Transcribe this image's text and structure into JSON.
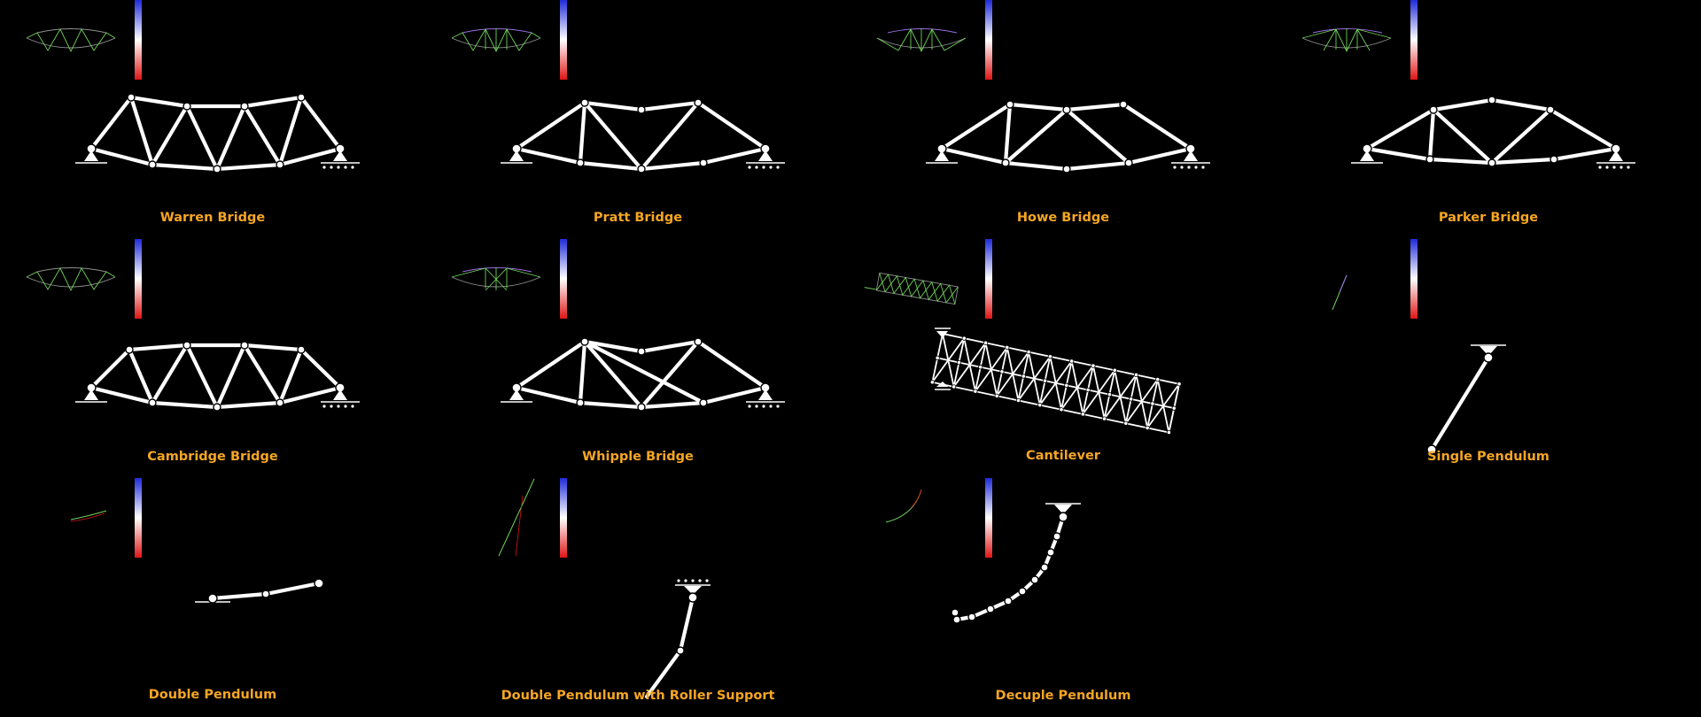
{
  "panels": [
    {
      "title": "Warren Bridge",
      "type": "truss",
      "verticals": false,
      "diagonals": "warren"
    },
    {
      "title": "Pratt Bridge",
      "type": "truss",
      "verticals": true,
      "diagonals": "pratt"
    },
    {
      "title": "Howe Bridge",
      "type": "truss",
      "verticals": true,
      "diagonals": "howe"
    },
    {
      "title": "Parker Bridge",
      "type": "truss",
      "verticals": true,
      "diagonals": "parker"
    },
    {
      "title": "Cambridge Bridge",
      "type": "truss",
      "verticals": false,
      "diagonals": "warren"
    },
    {
      "title": "Whipple Bridge",
      "type": "truss",
      "verticals": true,
      "diagonals": "whipple"
    },
    {
      "title": "Cantilever",
      "type": "cantilever"
    },
    {
      "title": "Single Pendulum",
      "type": "pendulum",
      "links": 1
    },
    {
      "title": "Double Pendulum",
      "type": "pendulum",
      "links": 2
    },
    {
      "title": "Double Pendulum with Roller Support",
      "type": "pendulum",
      "links": 2,
      "roller": true
    },
    {
      "title": "Decuple Pendulum",
      "type": "pendulum",
      "links": 10
    }
  ],
  "colorbar": {
    "top_color": "#1f2bd9",
    "mid_color": "#ffffff",
    "bottom_color": "#e01515"
  },
  "mini_colors": {
    "chord": "#8f8f8f",
    "diag_a": "#6fd15a",
    "diag_b": "#9a6fe0"
  },
  "label_color": "#f6a623",
  "background": "#000000"
}
